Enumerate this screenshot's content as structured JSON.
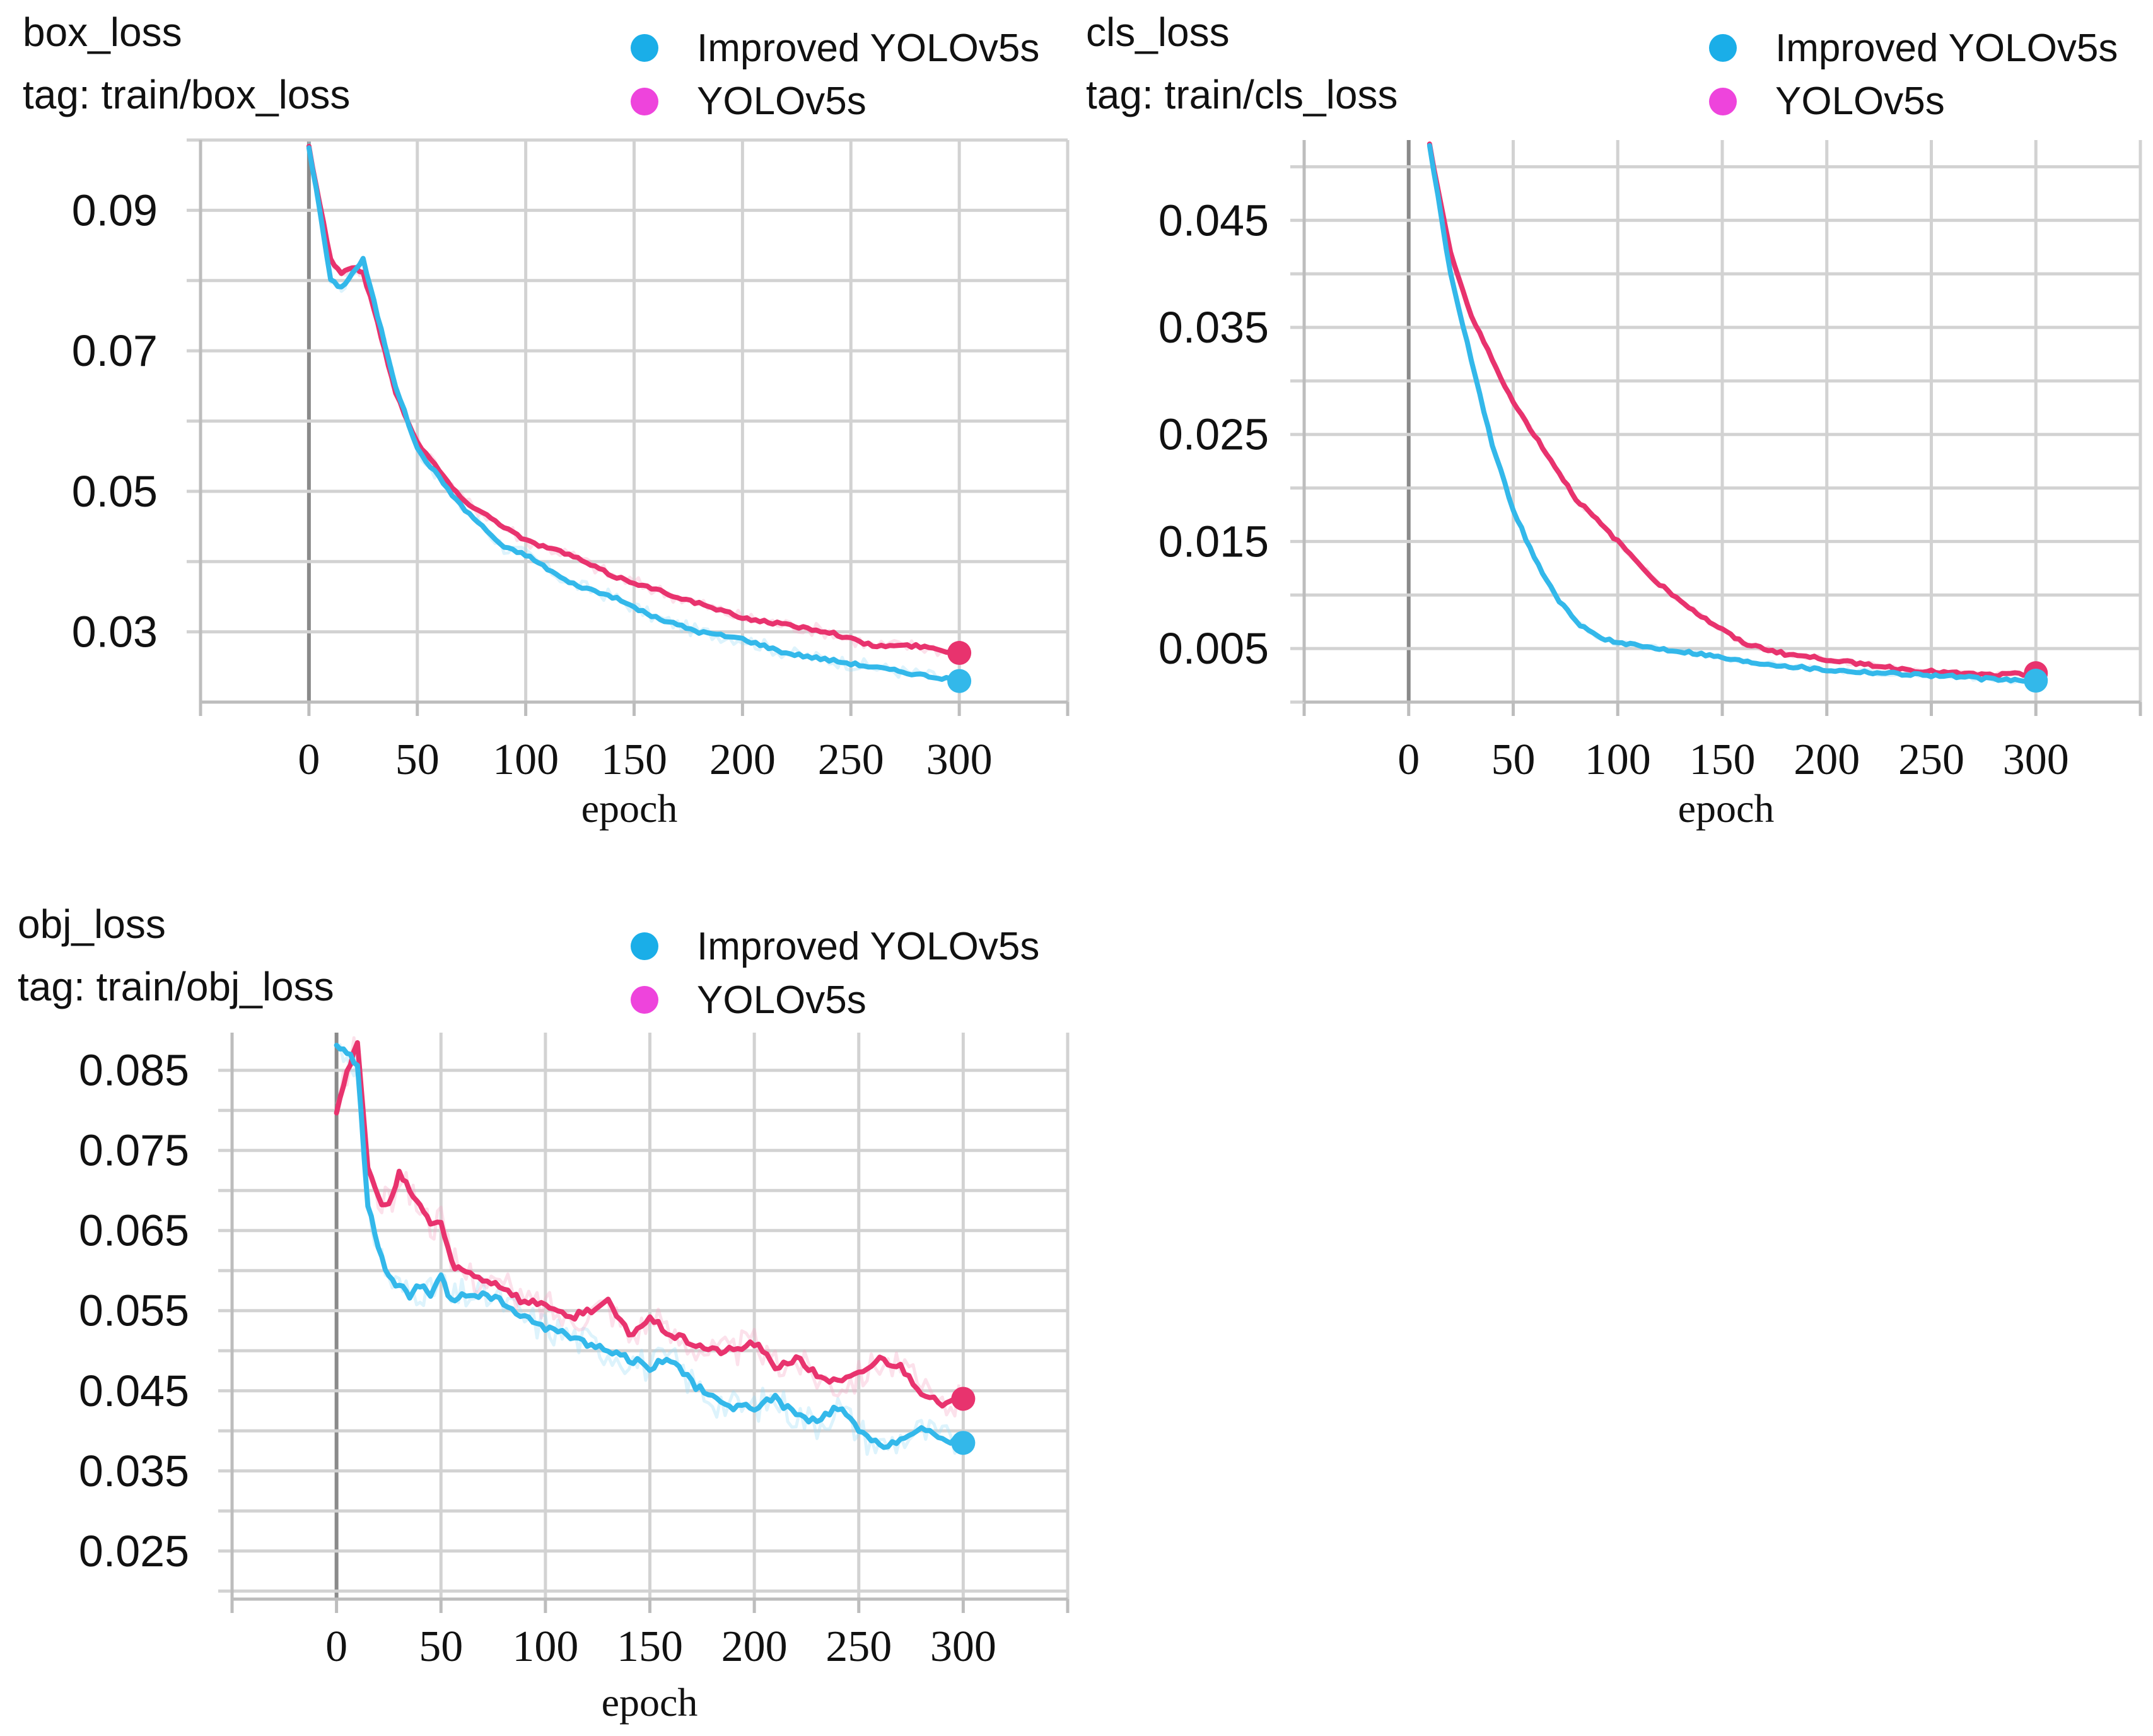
{
  "legend_labels": [
    "Improved YOLOv5s",
    "YOLOv5s"
  ],
  "colors": {
    "improved": "#33b8ea",
    "yolov5s": "#e8336e",
    "improved_legend": "#1aaee8",
    "yolov5s_legend": "#ee44dc",
    "improved_raw": "#9fdcf5",
    "yolov5s_raw": "#f6a9c6"
  },
  "chart_data": [
    {
      "type": "line",
      "title": "box_loss",
      "subtitle": "tag: train/box_loss",
      "xlabel": "epoch",
      "ylabel": "",
      "xlim": [
        -50,
        350
      ],
      "ylim": [
        0.02,
        0.1
      ],
      "x_ticks": [
        0,
        50,
        100,
        150,
        200,
        250,
        300
      ],
      "y_ticks": [
        0.03,
        0.05,
        0.07,
        0.09
      ],
      "y_tick_labels": [
        "0.03",
        "0.05",
        "0.07",
        "0.09"
      ],
      "x": [
        0,
        5,
        10,
        15,
        20,
        25,
        30,
        35,
        40,
        50,
        60,
        70,
        80,
        90,
        100,
        120,
        140,
        160,
        180,
        200,
        220,
        240,
        260,
        280,
        300
      ],
      "series": [
        {
          "name": "Improved YOLOv5s",
          "values": [
            0.099,
            0.09,
            0.08,
            0.079,
            0.081,
            0.083,
            0.077,
            0.071,
            0.065,
            0.056,
            0.052,
            0.048,
            0.045,
            0.042,
            0.041,
            0.037,
            0.035,
            0.032,
            0.03,
            0.029,
            0.027,
            0.026,
            0.025,
            0.024,
            0.023
          ]
        },
        {
          "name": "YOLOv5s",
          "values": [
            0.099,
            0.091,
            0.083,
            0.081,
            0.082,
            0.081,
            0.076,
            0.07,
            0.064,
            0.057,
            0.053,
            0.049,
            0.047,
            0.045,
            0.043,
            0.041,
            0.038,
            0.036,
            0.034,
            0.032,
            0.031,
            0.03,
            0.028,
            0.028,
            0.027
          ]
        }
      ]
    },
    {
      "type": "line",
      "title": "cls_loss",
      "subtitle": "tag: train/cls_loss",
      "xlabel": "epoch",
      "ylabel": "",
      "xlim": [
        -50,
        350
      ],
      "ylim": [
        0.0,
        0.0525
      ],
      "x_ticks": [
        0,
        50,
        100,
        150,
        200,
        250,
        300
      ],
      "y_ticks": [
        0.005,
        0.015,
        0.025,
        0.035,
        0.045
      ],
      "y_tick_labels": [
        "0.005",
        "0.015",
        "0.025",
        "0.035",
        "0.045"
      ],
      "x": [
        10,
        20,
        30,
        40,
        50,
        60,
        70,
        80,
        90,
        100,
        120,
        140,
        160,
        180,
        200,
        220,
        240,
        260,
        280,
        300
      ],
      "series": [
        {
          "name": "Improved YOLOv5s",
          "values": [
            0.052,
            0.04,
            0.032,
            0.024,
            0.018,
            0.0135,
            0.01,
            0.0075,
            0.0062,
            0.0055,
            0.005,
            0.0045,
            0.0038,
            0.0034,
            0.003,
            0.0028,
            0.0026,
            0.0024,
            0.0021,
            0.002
          ]
        },
        {
          "name": "YOLOv5s",
          "values": [
            0.052,
            0.042,
            0.036,
            0.032,
            0.028,
            0.025,
            0.022,
            0.019,
            0.017,
            0.015,
            0.011,
            0.008,
            0.0055,
            0.0045,
            0.004,
            0.0035,
            0.003,
            0.0027,
            0.0025,
            0.0027
          ]
        }
      ]
    },
    {
      "type": "line",
      "title": "obj_loss",
      "subtitle": "tag: train/obj_loss",
      "xlabel": "epoch",
      "ylabel": "",
      "xlim": [
        -50,
        350
      ],
      "ylim": [
        0.019,
        0.0897
      ],
      "x_ticks": [
        0,
        50,
        100,
        150,
        200,
        250,
        300
      ],
      "y_ticks": [
        0.025,
        0.035,
        0.045,
        0.055,
        0.065,
        0.075,
        0.085
      ],
      "y_tick_labels": [
        "0.025",
        "0.035",
        "0.045",
        "0.055",
        "0.065",
        "0.075",
        "0.085"
      ],
      "x": [
        0,
        5,
        10,
        15,
        20,
        25,
        30,
        35,
        40,
        45,
        50,
        55,
        60,
        70,
        80,
        90,
        100,
        110,
        120,
        130,
        140,
        150,
        160,
        170,
        180,
        190,
        200,
        210,
        220,
        230,
        240,
        250,
        260,
        270,
        280,
        290,
        300
      ],
      "series": [
        {
          "name": "Improved YOLOv5s",
          "values": [
            0.088,
            0.087,
            0.086,
            0.068,
            0.063,
            0.059,
            0.058,
            0.057,
            0.058,
            0.057,
            0.059,
            0.056,
            0.057,
            0.057,
            0.056,
            0.054,
            0.053,
            0.052,
            0.051,
            0.05,
            0.049,
            0.048,
            0.049,
            0.046,
            0.044,
            0.043,
            0.043,
            0.044,
            0.042,
            0.041,
            0.043,
            0.04,
            0.038,
            0.039,
            0.04,
            0.039,
            0.0385
          ]
        },
        {
          "name": "YOLOv5s",
          "values": [
            0.08,
            0.085,
            0.088,
            0.073,
            0.069,
            0.068,
            0.072,
            0.07,
            0.068,
            0.066,
            0.066,
            0.061,
            0.06,
            0.059,
            0.058,
            0.056,
            0.056,
            0.054,
            0.055,
            0.056,
            0.052,
            0.054,
            0.052,
            0.051,
            0.05,
            0.05,
            0.051,
            0.048,
            0.049,
            0.047,
            0.046,
            0.047,
            0.049,
            0.048,
            0.045,
            0.043,
            0.044
          ]
        }
      ]
    }
  ]
}
